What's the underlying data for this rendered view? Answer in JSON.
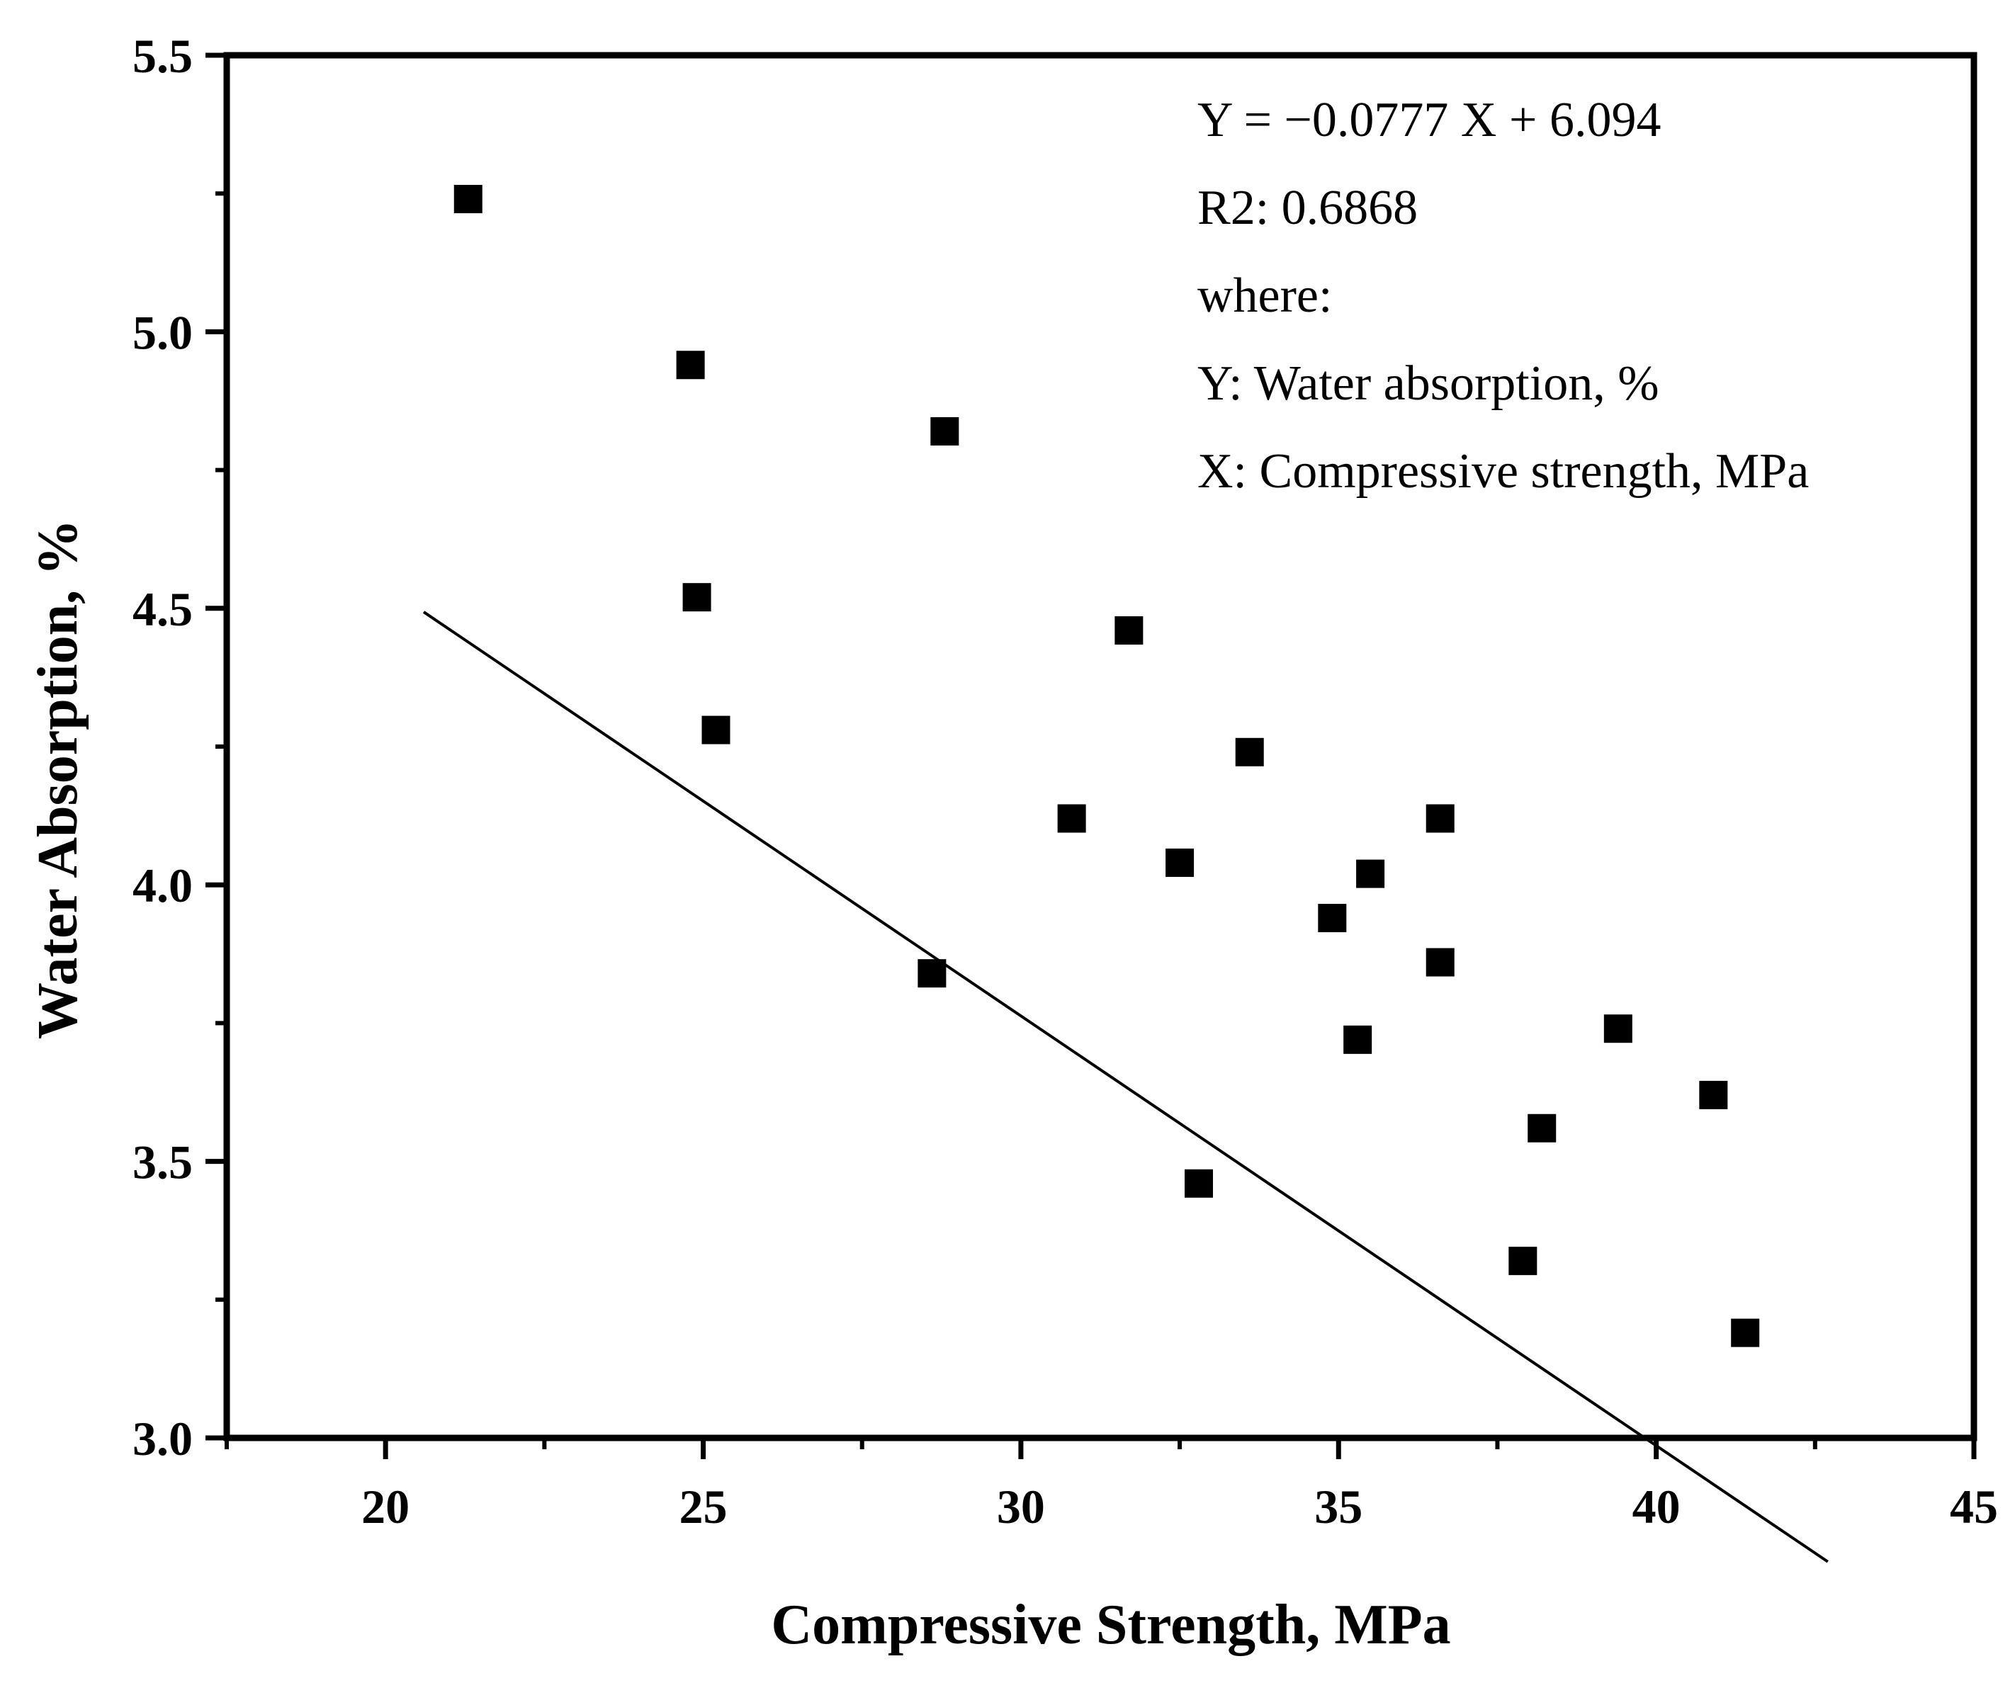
{
  "chart_data": {
    "type": "scatter",
    "xlabel": "Compressive Strength, MPa",
    "ylabel": "Water Absorption, %",
    "xlim": [
      17.5,
      45
    ],
    "ylim": [
      3.0,
      5.5
    ],
    "x_ticks": [
      "20",
      "25",
      "30",
      "35",
      "40",
      "45"
    ],
    "y_ticks": [
      "3.0",
      "3.5",
      "4.0",
      "4.5",
      "5.0",
      "5.5"
    ],
    "series": [
      {
        "name": "data",
        "marker": "square",
        "points": [
          {
            "x": 21.3,
            "y": 5.24
          },
          {
            "x": 24.8,
            "y": 4.94
          },
          {
            "x": 28.8,
            "y": 4.82
          },
          {
            "x": 24.9,
            "y": 4.52
          },
          {
            "x": 25.2,
            "y": 4.28
          },
          {
            "x": 31.7,
            "y": 4.46
          },
          {
            "x": 33.6,
            "y": 4.24
          },
          {
            "x": 30.8,
            "y": 4.12
          },
          {
            "x": 32.5,
            "y": 4.04
          },
          {
            "x": 36.6,
            "y": 4.12
          },
          {
            "x": 35.5,
            "y": 4.02
          },
          {
            "x": 34.9,
            "y": 3.94
          },
          {
            "x": 36.6,
            "y": 3.86
          },
          {
            "x": 28.6,
            "y": 3.84
          },
          {
            "x": 35.3,
            "y": 3.72
          },
          {
            "x": 39.4,
            "y": 3.74
          },
          {
            "x": 40.9,
            "y": 3.62
          },
          {
            "x": 38.2,
            "y": 3.56
          },
          {
            "x": 32.8,
            "y": 3.46
          },
          {
            "x": 37.9,
            "y": 3.32
          },
          {
            "x": 41.4,
            "y": 3.19
          }
        ]
      }
    ],
    "fit_line": {
      "slope": -0.0777,
      "intercept": 6.094,
      "x_start": 20.6,
      "x_end": 42.7
    },
    "annotation": [
      "Y = −0.0777 X + 6.094",
      "R2: 0.6868",
      "where:",
      "Y: Water absorption, %",
      "X: Compressive strength, MPa"
    ],
    "grid": false,
    "colors": {
      "marker": "#000000",
      "line": "#000000",
      "axis": "#000000"
    }
  }
}
